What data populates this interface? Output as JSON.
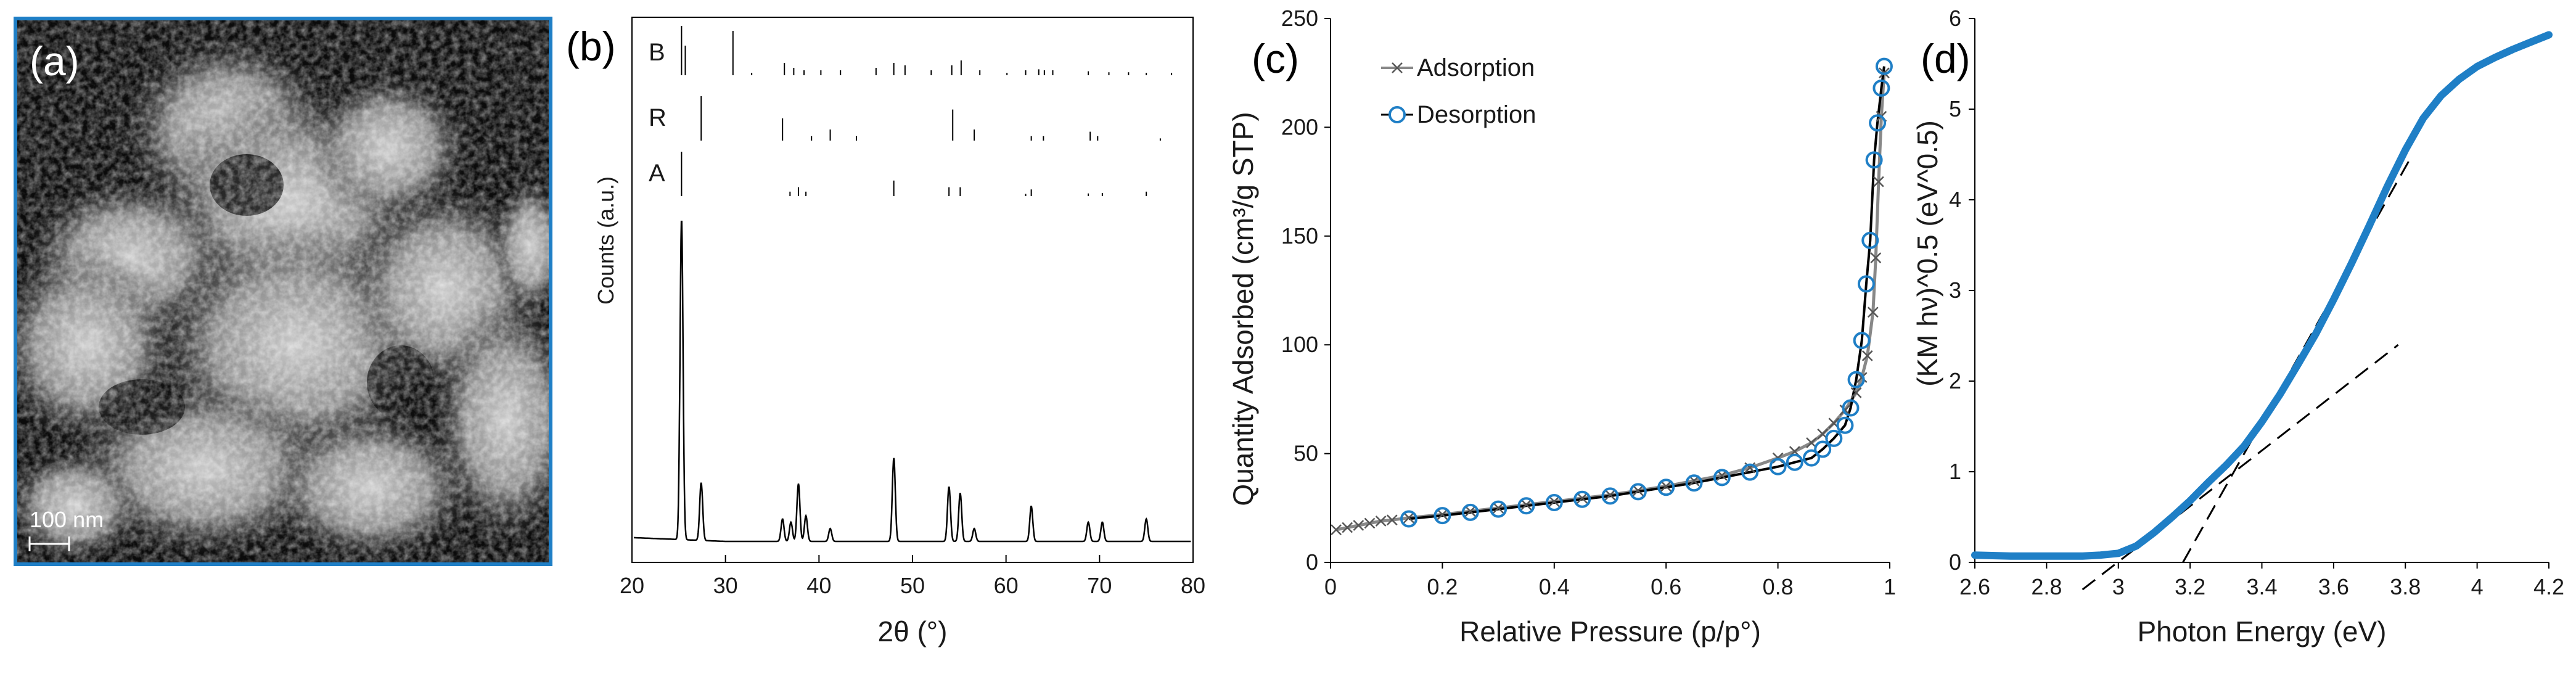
{
  "panels": {
    "a": {
      "label": "(a)",
      "scale_bar": "100 nm"
    },
    "b": {
      "label": "(b)"
    },
    "c": {
      "label": "(c)"
    },
    "d": {
      "label": "(d)"
    }
  },
  "colors": {
    "accent": "#1f7fc6",
    "frame": "#1f7fc6",
    "line": "#000000",
    "adsorption": "#888888"
  },
  "chart_data": [
    {
      "panel": "b",
      "type": "line",
      "xlabel": "2θ (°)",
      "ylabel": "Counts (a.u.)",
      "xlim": [
        20,
        80
      ],
      "xticks": [
        "20",
        "30",
        "40",
        "50",
        "60",
        "70",
        "80"
      ],
      "peaks": [
        {
          "x": 25.3,
          "h": 100
        },
        {
          "x": 27.4,
          "h": 18
        },
        {
          "x": 36.1,
          "h": 7
        },
        {
          "x": 37.0,
          "h": 6
        },
        {
          "x": 37.8,
          "h": 18
        },
        {
          "x": 38.6,
          "h": 8
        },
        {
          "x": 41.2,
          "h": 4
        },
        {
          "x": 48.0,
          "h": 26
        },
        {
          "x": 53.9,
          "h": 17
        },
        {
          "x": 55.1,
          "h": 15
        },
        {
          "x": 56.6,
          "h": 4
        },
        {
          "x": 62.7,
          "h": 11
        },
        {
          "x": 68.8,
          "h": 6
        },
        {
          "x": 70.3,
          "h": 6
        },
        {
          "x": 75.0,
          "h": 7
        }
      ],
      "reference_patterns": [
        {
          "name": "B",
          "lines": [
            {
              "x": 25.3,
              "h": 100
            },
            {
              "x": 25.7,
              "h": 60
            },
            {
              "x": 30.8,
              "h": 90
            },
            {
              "x": 32.8,
              "h": 5
            },
            {
              "x": 36.3,
              "h": 25
            },
            {
              "x": 37.3,
              "h": 15
            },
            {
              "x": 38.4,
              "h": 10
            },
            {
              "x": 40.2,
              "h": 10
            },
            {
              "x": 42.3,
              "h": 10
            },
            {
              "x": 46.1,
              "h": 15
            },
            {
              "x": 48.0,
              "h": 25
            },
            {
              "x": 49.2,
              "h": 20
            },
            {
              "x": 52.0,
              "h": 10
            },
            {
              "x": 54.2,
              "h": 20
            },
            {
              "x": 55.2,
              "h": 30
            },
            {
              "x": 57.2,
              "h": 10
            },
            {
              "x": 60.1,
              "h": 5
            },
            {
              "x": 62.1,
              "h": 10
            },
            {
              "x": 63.5,
              "h": 12
            },
            {
              "x": 64.1,
              "h": 10
            },
            {
              "x": 65.0,
              "h": 10
            },
            {
              "x": 68.8,
              "h": 8
            },
            {
              "x": 71.0,
              "h": 6
            },
            {
              "x": 73.1,
              "h": 6
            },
            {
              "x": 75.0,
              "h": 5
            },
            {
              "x": 77.7,
              "h": 5
            }
          ]
        },
        {
          "name": "R",
          "lines": [
            {
              "x": 27.4,
              "h": 100
            },
            {
              "x": 36.1,
              "h": 50
            },
            {
              "x": 39.2,
              "h": 10
            },
            {
              "x": 41.2,
              "h": 25
            },
            {
              "x": 44.0,
              "h": 10
            },
            {
              "x": 54.3,
              "h": 70
            },
            {
              "x": 56.6,
              "h": 25
            },
            {
              "x": 62.7,
              "h": 10
            },
            {
              "x": 64.0,
              "h": 10
            },
            {
              "x": 69.0,
              "h": 20
            },
            {
              "x": 69.8,
              "h": 10
            },
            {
              "x": 76.5,
              "h": 5
            }
          ]
        },
        {
          "name": "A",
          "lines": [
            {
              "x": 25.3,
              "h": 100
            },
            {
              "x": 36.9,
              "h": 10
            },
            {
              "x": 37.8,
              "h": 20
            },
            {
              "x": 38.6,
              "h": 10
            },
            {
              "x": 48.0,
              "h": 35
            },
            {
              "x": 53.9,
              "h": 20
            },
            {
              "x": 55.1,
              "h": 20
            },
            {
              "x": 62.1,
              "h": 5
            },
            {
              "x": 62.7,
              "h": 15
            },
            {
              "x": 68.8,
              "h": 6
            },
            {
              "x": 70.3,
              "h": 7
            },
            {
              "x": 75.0,
              "h": 10
            }
          ]
        }
      ]
    },
    {
      "panel": "c",
      "type": "line",
      "xlabel": "Relative Pressure (p/p°)",
      "ylabel": "Quantity Adsorbed (cm³/g STP)",
      "xlim": [
        0,
        1
      ],
      "ylim": [
        0,
        250
      ],
      "xticks": [
        "0",
        "0.2",
        "0.4",
        "0.6",
        "0.8",
        "1"
      ],
      "yticks": [
        "0",
        "50",
        "100",
        "150",
        "200",
        "250"
      ],
      "legend": {
        "position": "top-left",
        "entries": [
          "Adsorption",
          "Desorption"
        ]
      },
      "series": [
        {
          "name": "Adsorption",
          "marker": "x",
          "x": [
            0.01,
            0.03,
            0.05,
            0.07,
            0.09,
            0.11,
            0.14,
            0.2,
            0.25,
            0.3,
            0.35,
            0.4,
            0.45,
            0.5,
            0.55,
            0.6,
            0.65,
            0.7,
            0.75,
            0.8,
            0.83,
            0.86,
            0.88,
            0.9,
            0.92,
            0.94,
            0.95,
            0.96,
            0.97,
            0.975,
            0.98,
            0.985,
            0.99
          ],
          "y": [
            15,
            16,
            17,
            18,
            19,
            19.5,
            20.5,
            22,
            23.5,
            25,
            26.5,
            28,
            29.5,
            31,
            33,
            35,
            37.5,
            40,
            43.5,
            48,
            51,
            55,
            59,
            64,
            70,
            78,
            85,
            95,
            115,
            140,
            175,
            205,
            225
          ]
        },
        {
          "name": "Desorption",
          "marker": "circle",
          "x": [
            0.99,
            0.985,
            0.978,
            0.972,
            0.965,
            0.958,
            0.95,
            0.94,
            0.93,
            0.92,
            0.9,
            0.88,
            0.86,
            0.83,
            0.8,
            0.75,
            0.7,
            0.65,
            0.6,
            0.55,
            0.5,
            0.45,
            0.4,
            0.35,
            0.3,
            0.25,
            0.2,
            0.14
          ],
          "y": [
            228,
            218,
            202,
            185,
            148,
            128,
            102,
            84,
            71,
            63,
            57,
            52,
            48,
            46,
            44,
            41.5,
            39,
            36.5,
            34.5,
            32.5,
            30.5,
            29,
            27.5,
            26,
            24.5,
            23,
            21.5,
            20
          ]
        }
      ]
    },
    {
      "panel": "d",
      "type": "line",
      "xlabel": "Photon Energy (eV)",
      "ylabel": "(KM hν)^0.5 (eV^0.5)",
      "xlim": [
        2.6,
        4.2
      ],
      "ylim": [
        0,
        6
      ],
      "xticks": [
        "2.6",
        "2.8",
        "3",
        "3.2",
        "3.4",
        "3.6",
        "3.8",
        "4",
        "4.2"
      ],
      "yticks": [
        "0",
        "1",
        "2",
        "3",
        "4",
        "5",
        "6"
      ],
      "series": [
        {
          "name": "",
          "x": [
            2.6,
            2.7,
            2.8,
            2.9,
            2.95,
            3.0,
            3.05,
            3.1,
            3.15,
            3.2,
            3.25,
            3.3,
            3.35,
            3.4,
            3.45,
            3.5,
            3.55,
            3.6,
            3.65,
            3.7,
            3.75,
            3.8,
            3.85,
            3.9,
            3.95,
            4.0,
            4.05,
            4.1,
            4.15,
            4.2
          ],
          "y": [
            0.08,
            0.07,
            0.07,
            0.07,
            0.08,
            0.1,
            0.18,
            0.33,
            0.5,
            0.68,
            0.88,
            1.07,
            1.28,
            1.55,
            1.85,
            2.18,
            2.52,
            2.9,
            3.3,
            3.72,
            4.15,
            4.55,
            4.9,
            5.15,
            5.33,
            5.47,
            5.57,
            5.66,
            5.74,
            5.82
          ]
        }
      ],
      "tangents": [
        {
          "x": [
            3.18,
            3.82
          ],
          "y": [
            0,
            4.5
          ]
        },
        {
          "x": [
            2.9,
            3.78
          ],
          "y": [
            -0.3,
            2.4
          ]
        }
      ]
    }
  ]
}
